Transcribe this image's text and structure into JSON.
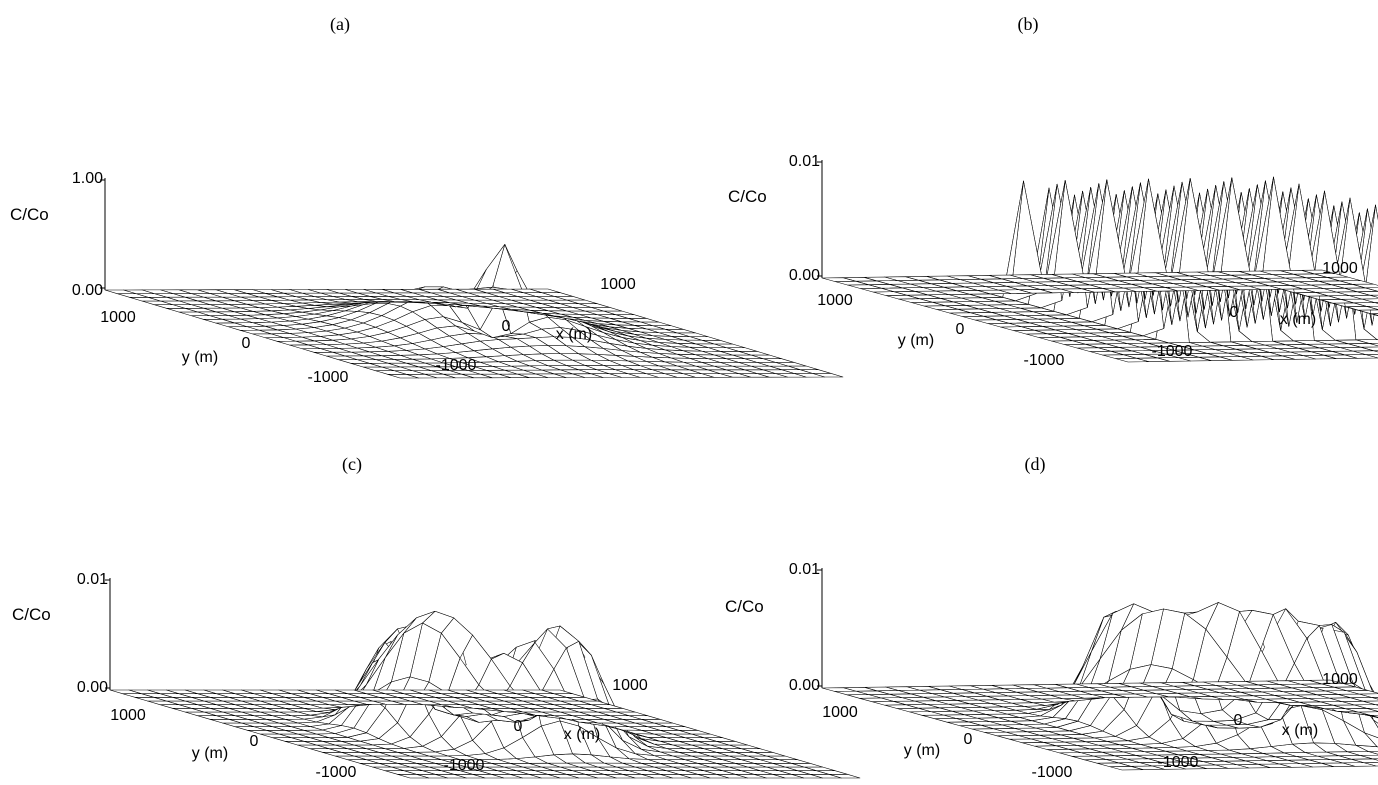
{
  "chart_data": [
    {
      "panel": "(a)",
      "type": "surface",
      "surface": "two-well",
      "zlabel": "C/Co",
      "xlabel": "x (m)",
      "ylabel": "y (m)",
      "zticks": [
        "0.00",
        "1.00"
      ],
      "zlim": [
        0.0,
        1.0
      ],
      "xticks": [
        "-1000",
        "0",
        "1000"
      ],
      "yticks": [
        "1000",
        "0",
        "-1000"
      ],
      "xlim": [
        -1400,
        1400
      ],
      "ylim": [
        -1400,
        1400
      ]
    },
    {
      "panel": "(b)",
      "type": "surface",
      "surface": "spiky-block",
      "zlabel": "C/Co",
      "xlabel": "x (m)",
      "ylabel": "y (m)",
      "zticks": [
        "0.00",
        "0.01"
      ],
      "zlim": [
        0.0,
        0.01
      ],
      "xticks": [
        "-1000",
        "0",
        "1000"
      ],
      "yticks": [
        "1000",
        "0",
        "-1000"
      ],
      "xlim": [
        -1400,
        1400
      ],
      "ylim": [
        -1400,
        1400
      ]
    },
    {
      "panel": "(c)",
      "type": "surface",
      "surface": "ring-bumpy",
      "zlabel": "C/Co",
      "xlabel": "x (m)",
      "ylabel": "y (m)",
      "zticks": [
        "0.00",
        "0.01"
      ],
      "zlim": [
        0.0,
        0.01
      ],
      "xticks": [
        "-1000",
        "0",
        "1000"
      ],
      "yticks": [
        "1000",
        "0",
        "-1000"
      ],
      "xlim": [
        -1400,
        1400
      ],
      "ylim": [
        -1400,
        1400
      ]
    },
    {
      "panel": "(d)",
      "type": "surface",
      "surface": "ring-smooth",
      "zlabel": "C/Co",
      "xlabel": "x (m)",
      "ylabel": "y (m)",
      "zticks": [
        "0.00",
        "0.01"
      ],
      "zlim": [
        0.0,
        0.01
      ],
      "xticks": [
        "-1000",
        "0",
        "1000"
      ],
      "yticks": [
        "1000",
        "0",
        "-1000"
      ],
      "xlim": [
        -1400,
        1400
      ],
      "ylim": [
        -1400,
        1400
      ]
    }
  ]
}
